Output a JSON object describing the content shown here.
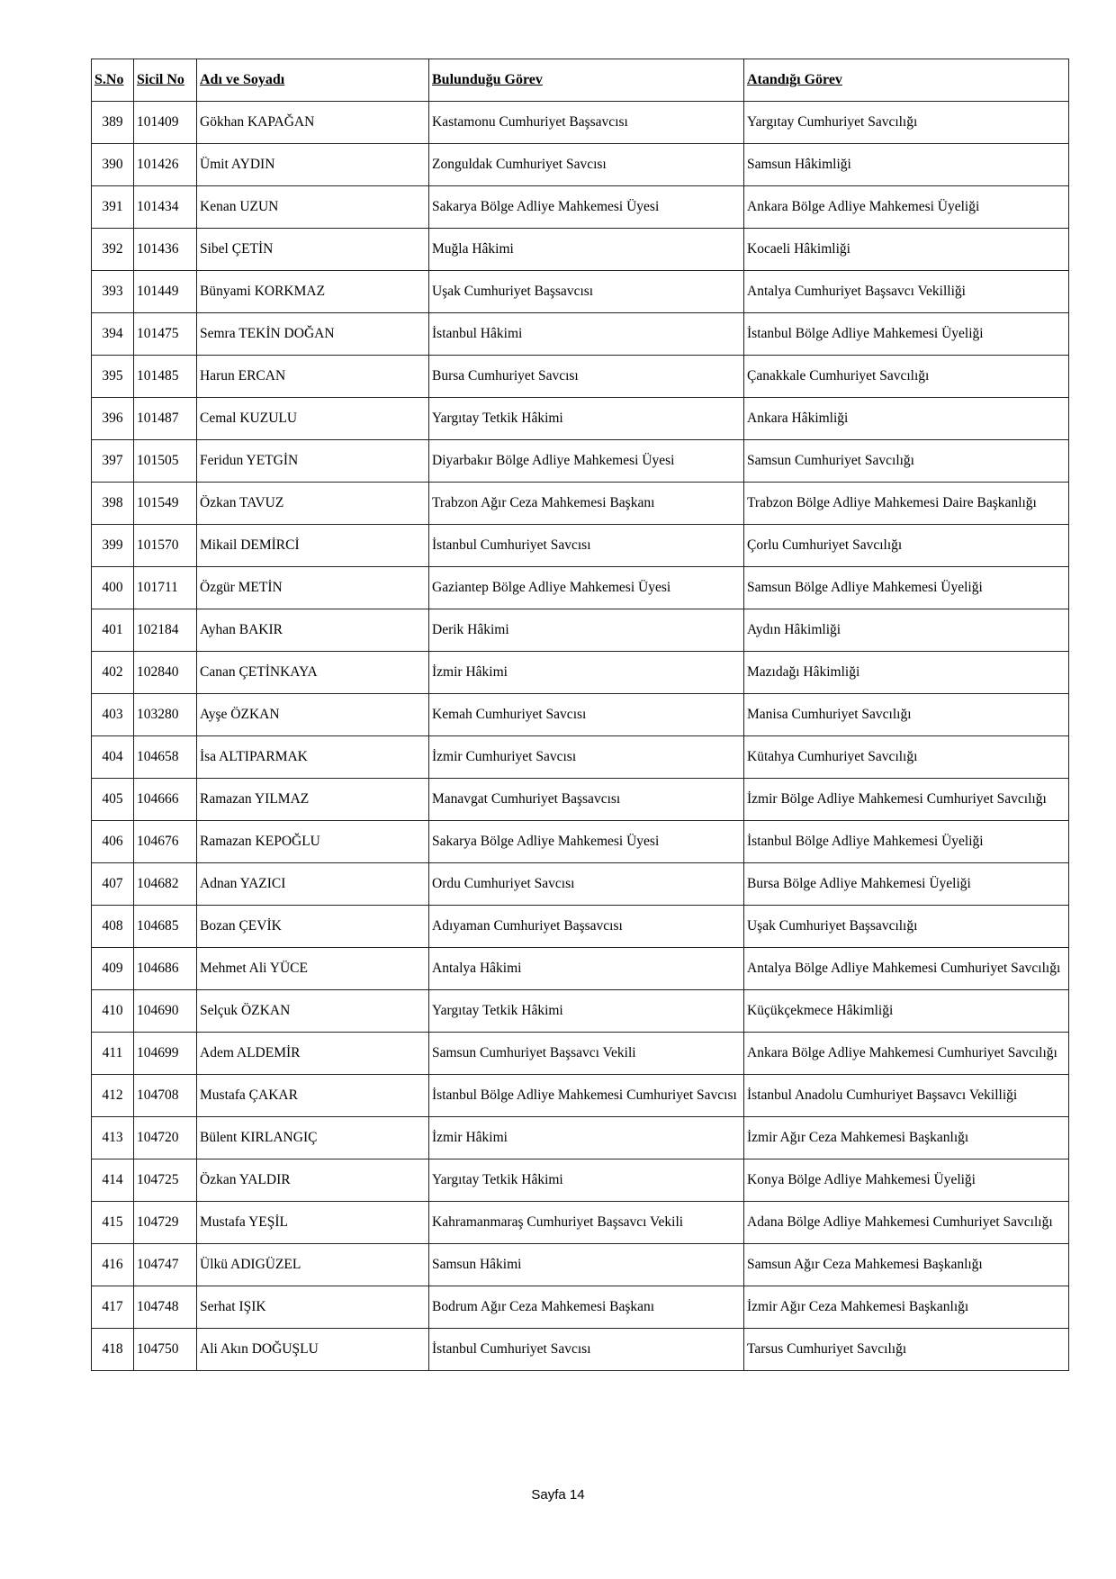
{
  "headers": [
    "S.No",
    "Sicil No",
    "Adı ve Soyadı",
    "Bulunduğu Görev",
    "Atandığı Görev"
  ],
  "rows": [
    [
      "389",
      "101409",
      "Gökhan KAPAĞAN",
      "Kastamonu Cumhuriyet Başsavcısı",
      "Yargıtay Cumhuriyet Savcılığı"
    ],
    [
      "390",
      "101426",
      "Ümit AYDIN",
      "Zonguldak Cumhuriyet Savcısı",
      "Samsun Hâkimliği"
    ],
    [
      "391",
      "101434",
      "Kenan UZUN",
      "Sakarya Bölge Adliye Mahkemesi Üyesi",
      "Ankara Bölge Adliye Mahkemesi Üyeliği"
    ],
    [
      "392",
      "101436",
      "Sibel ÇETİN",
      "Muğla Hâkimi",
      "Kocaeli Hâkimliği"
    ],
    [
      "393",
      "101449",
      "Bünyami KORKMAZ",
      "Uşak Cumhuriyet Başsavcısı",
      "Antalya Cumhuriyet Başsavcı Vekilliği"
    ],
    [
      "394",
      "101475",
      "Semra TEKİN DOĞAN",
      "İstanbul Hâkimi",
      "İstanbul Bölge Adliye Mahkemesi Üyeliği"
    ],
    [
      "395",
      "101485",
      "Harun ERCAN",
      "Bursa Cumhuriyet Savcısı",
      "Çanakkale Cumhuriyet Savcılığı"
    ],
    [
      "396",
      "101487",
      "Cemal KUZULU",
      "Yargıtay Tetkik Hâkimi",
      "Ankara Hâkimliği"
    ],
    [
      "397",
      "101505",
      "Feridun YETGİN",
      "Diyarbakır Bölge Adliye Mahkemesi Üyesi",
      "Samsun Cumhuriyet Savcılığı"
    ],
    [
      "398",
      "101549",
      "Özkan TAVUZ",
      "Trabzon Ağır Ceza Mahkemesi Başkanı",
      "Trabzon Bölge Adliye Mahkemesi Daire Başkanlığı"
    ],
    [
      "399",
      "101570",
      "Mikail DEMİRCİ",
      "İstanbul Cumhuriyet Savcısı",
      "Çorlu Cumhuriyet Savcılığı"
    ],
    [
      "400",
      "101711",
      "Özgür METİN",
      "Gaziantep Bölge Adliye Mahkemesi Üyesi",
      "Samsun Bölge Adliye Mahkemesi Üyeliği"
    ],
    [
      "401",
      "102184",
      "Ayhan BAKIR",
      "Derik Hâkimi",
      "Aydın Hâkimliği"
    ],
    [
      "402",
      "102840",
      "Canan ÇETİNKAYA",
      "İzmir Hâkimi",
      "Mazıdağı Hâkimliği"
    ],
    [
      "403",
      "103280",
      "Ayşe ÖZKAN",
      "Kemah Cumhuriyet Savcısı",
      "Manisa Cumhuriyet Savcılığı"
    ],
    [
      "404",
      "104658",
      "İsa ALTIPARMAK",
      "İzmir Cumhuriyet Savcısı",
      "Kütahya Cumhuriyet Savcılığı"
    ],
    [
      "405",
      "104666",
      "Ramazan YILMAZ",
      "Manavgat Cumhuriyet Başsavcısı",
      "İzmir Bölge Adliye Mahkemesi Cumhuriyet Savcılığı"
    ],
    [
      "406",
      "104676",
      "Ramazan KEPOĞLU",
      "Sakarya Bölge Adliye Mahkemesi Üyesi",
      "İstanbul Bölge Adliye Mahkemesi Üyeliği"
    ],
    [
      "407",
      "104682",
      "Adnan YAZICI",
      "Ordu Cumhuriyet Savcısı",
      "Bursa Bölge Adliye Mahkemesi Üyeliği"
    ],
    [
      "408",
      "104685",
      "Bozan ÇEVİK",
      "Adıyaman Cumhuriyet Başsavcısı",
      "Uşak Cumhuriyet Başsavcılığı"
    ],
    [
      "409",
      "104686",
      "Mehmet Ali YÜCE",
      "Antalya Hâkimi",
      "Antalya Bölge Adliye Mahkemesi Cumhuriyet Savcılığı"
    ],
    [
      "410",
      "104690",
      "Selçuk ÖZKAN",
      "Yargıtay Tetkik Hâkimi",
      "Küçükçekmece Hâkimliği"
    ],
    [
      "411",
      "104699",
      "Adem ALDEMİR",
      "Samsun Cumhuriyet Başsavcı Vekili",
      "Ankara Bölge Adliye Mahkemesi Cumhuriyet Savcılığı"
    ],
    [
      "412",
      "104708",
      "Mustafa ÇAKAR",
      "İstanbul Bölge Adliye Mahkemesi Cumhuriyet Savcısı",
      "İstanbul Anadolu Cumhuriyet Başsavcı Vekilliği"
    ],
    [
      "413",
      "104720",
      "Bülent KIRLANGIÇ",
      "İzmir Hâkimi",
      "İzmir Ağır Ceza Mahkemesi Başkanlığı"
    ],
    [
      "414",
      "104725",
      "Özkan YALDIR",
      "Yargıtay Tetkik Hâkimi",
      "Konya Bölge Adliye Mahkemesi Üyeliği"
    ],
    [
      "415",
      "104729",
      "Mustafa YEŞİL",
      "Kahramanmaraş Cumhuriyet Başsavcı Vekili",
      "Adana Bölge Adliye Mahkemesi Cumhuriyet Savcılığı"
    ],
    [
      "416",
      "104747",
      "Ülkü ADIGÜZEL",
      "Samsun Hâkimi",
      "Samsun Ağır Ceza Mahkemesi Başkanlığı"
    ],
    [
      "417",
      "104748",
      "Serhat IŞIK",
      "Bodrum Ağır Ceza Mahkemesi Başkanı",
      "İzmir Ağır Ceza Mahkemesi Başkanlığı"
    ],
    [
      "418",
      "104750",
      "Ali Akın DOĞUŞLU",
      "İstanbul Cumhuriyet Savcısı",
      "Tarsus Cumhuriyet Savcılığı"
    ]
  ],
  "footer": {
    "page_label": "Sayfa 14"
  }
}
